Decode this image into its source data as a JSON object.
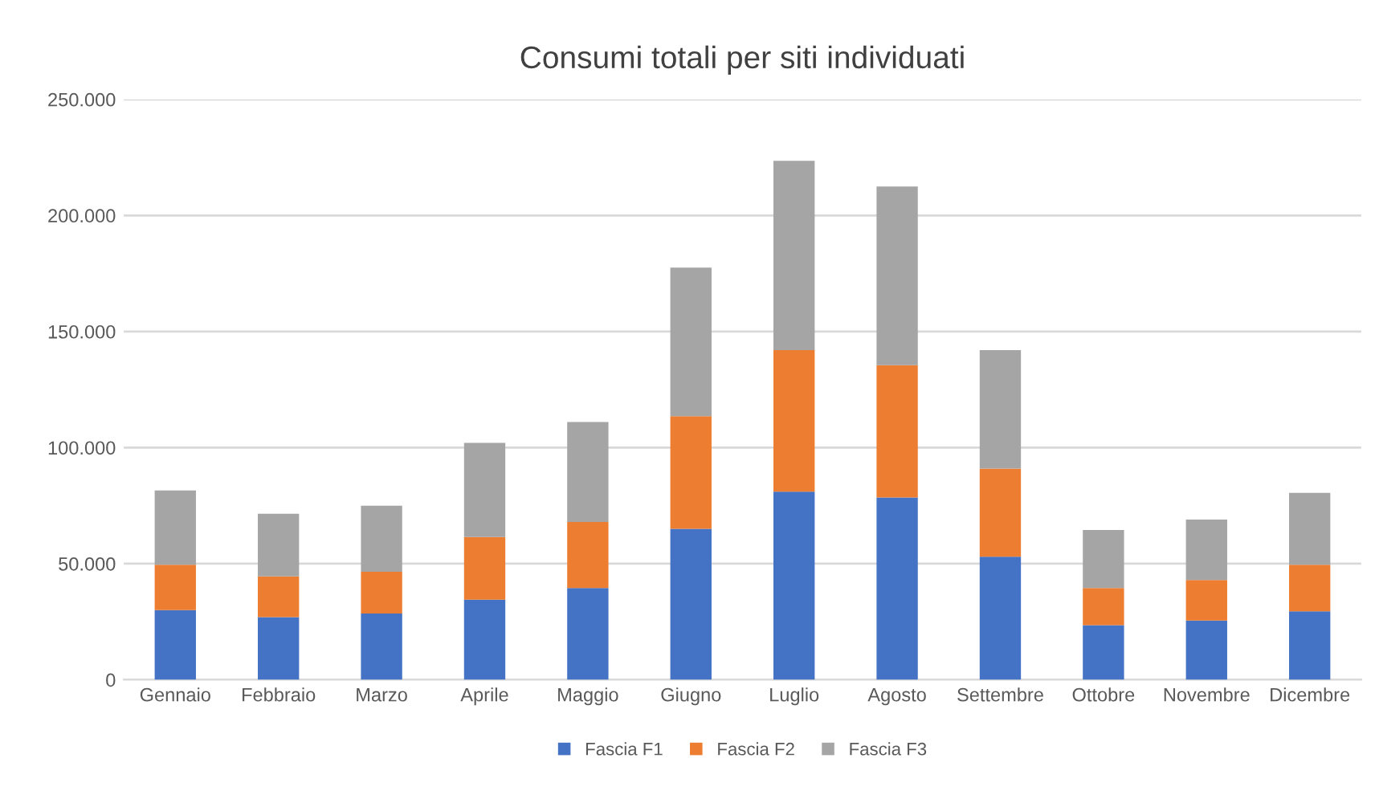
{
  "chart_data": {
    "type": "bar",
    "title": "Consumi totali per siti individuati",
    "stacked": true,
    "categories": [
      "Gennaio",
      "Febbraio",
      "Marzo",
      "Aprile",
      "Maggio",
      "Giugno",
      "Luglio",
      "Agosto",
      "Settembre",
      "Ottobre",
      "Novembre",
      "Dicembre"
    ],
    "series": [
      {
        "name": "Fascia F1",
        "color": "#4472c4",
        "values": [
          30000,
          27000,
          28500,
          34500,
          39500,
          65000,
          81000,
          78500,
          53000,
          23500,
          25500,
          29500
        ]
      },
      {
        "name": "Fascia F2",
        "color": "#ed7d31",
        "values": [
          19500,
          17500,
          18000,
          27000,
          28500,
          48500,
          61000,
          57000,
          38000,
          16000,
          17500,
          20000
        ]
      },
      {
        "name": "Fascia F3",
        "color": "#a5a5a5",
        "values": [
          32000,
          27000,
          28500,
          40500,
          43000,
          64000,
          81500,
          77000,
          51000,
          25000,
          26000,
          31000
        ]
      }
    ],
    "ylim": [
      0,
      250000
    ],
    "yticks": [
      {
        "value": 0,
        "label": "0"
      },
      {
        "value": 50000,
        "label": "50.000"
      },
      {
        "value": 100000,
        "label": "100.000"
      },
      {
        "value": 150000,
        "label": "150.000"
      },
      {
        "value": 200000,
        "label": "200.000"
      },
      {
        "value": 250000,
        "label": "250.000"
      }
    ],
    "grid": "y",
    "legend": "bottom"
  }
}
